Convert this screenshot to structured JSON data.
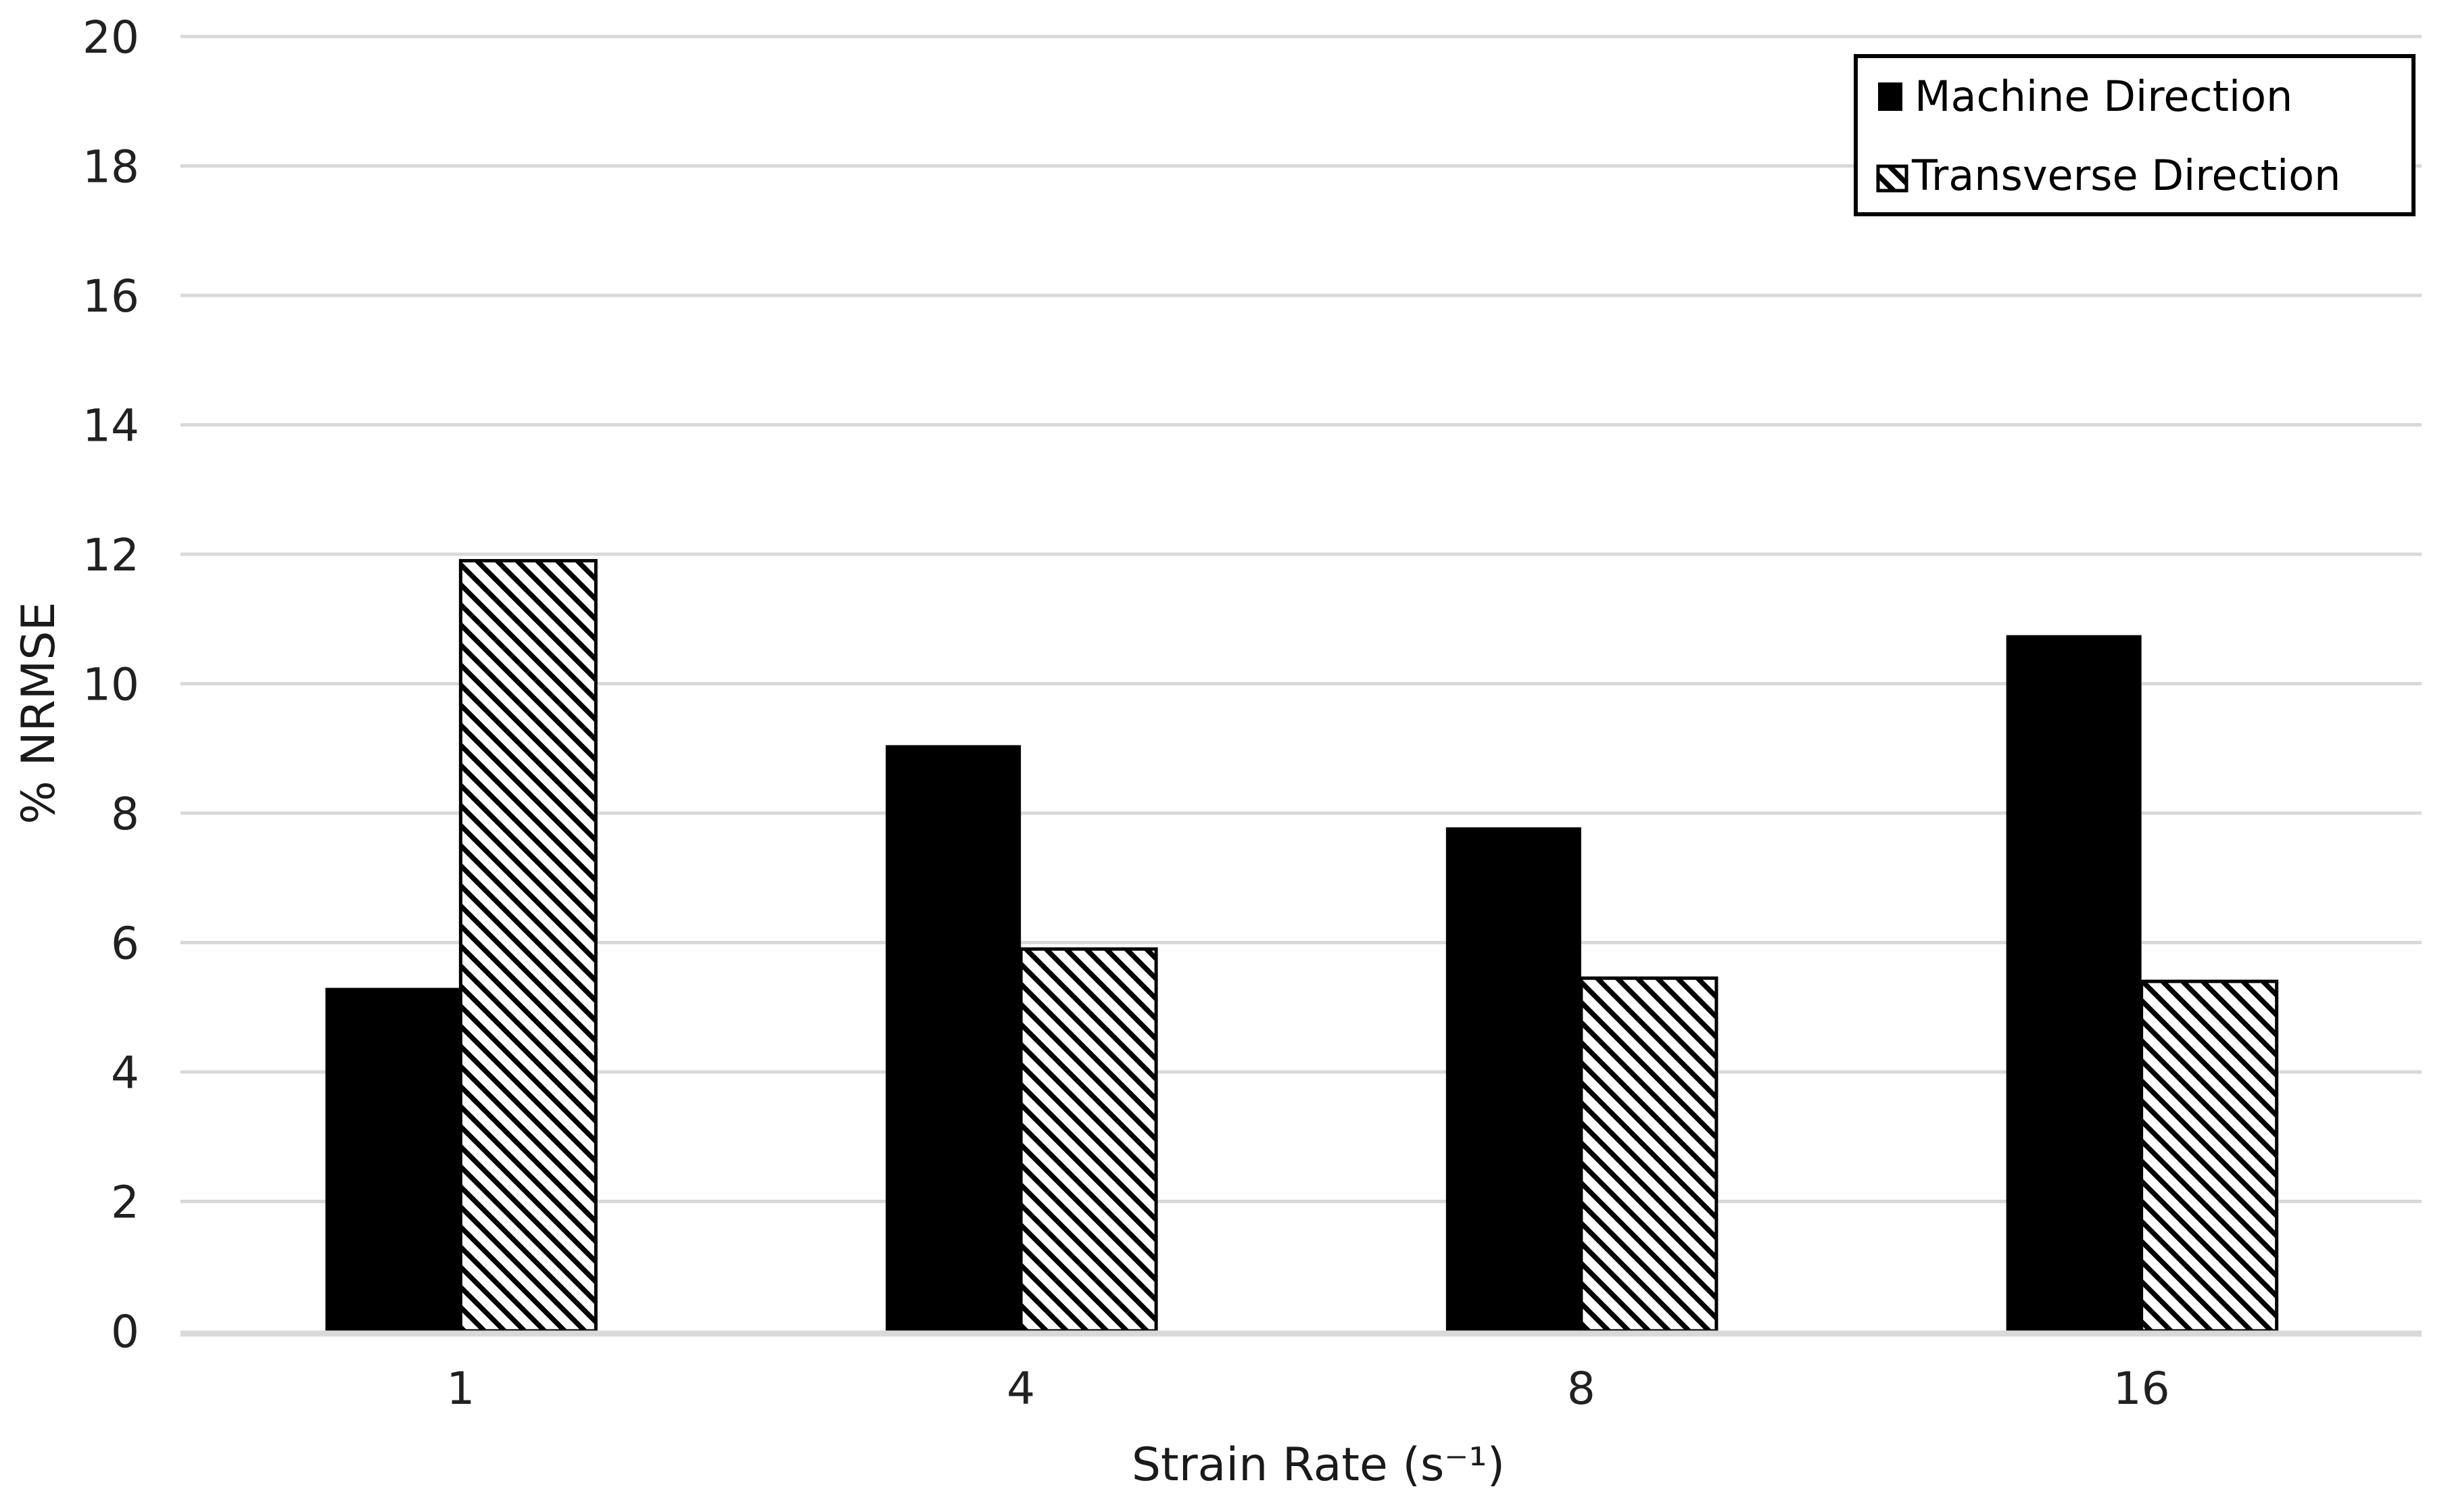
{
  "chart_data": {
    "type": "bar",
    "title": "",
    "categories": [
      "1",
      "4",
      "8",
      "16"
    ],
    "series": [
      {
        "name": "Machine Direction",
        "style": "solid",
        "values": [
          5.3,
          9.05,
          7.78,
          10.75
        ]
      },
      {
        "name": "Transverse Direction",
        "style": "diagonal-hatch",
        "values": [
          11.9,
          5.9,
          5.45,
          5.4
        ]
      }
    ],
    "xlabel": "Strain Rate (s⁻¹)",
    "ylabel": "% NRMSE",
    "ylim": [
      0,
      20
    ],
    "ytick_step": 2,
    "grid": "horizontal",
    "legend_position": "top-right",
    "colors": {
      "bar_fill": "#000000",
      "hatch_stripe": "#000000",
      "hatch_background": "#ffffff",
      "gridline": "#d9d9d9",
      "axis_line": "#d9d9d9",
      "tick_text": "#212121",
      "legend_border": "#000000",
      "background": "#ffffff"
    }
  }
}
